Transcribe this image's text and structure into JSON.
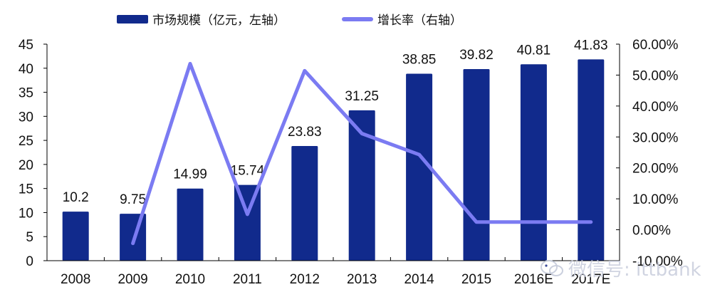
{
  "legend": {
    "bar_label": "市场规模（亿元，左轴）",
    "line_label": "增长率（右轴）"
  },
  "watermark": {
    "text": "微信号: ittbank",
    "icon": "wechat-icon"
  },
  "colors": {
    "bar": "#112a8c",
    "line": "#7b7bf2",
    "axis": "#000000"
  },
  "chart_data": {
    "type": "bar+line",
    "title": "",
    "categories": [
      "2008",
      "2009",
      "2010",
      "2011",
      "2012",
      "2013",
      "2014",
      "2015",
      "2016E",
      "2017E"
    ],
    "series": [
      {
        "name": "市场规模（亿元，左轴）",
        "type": "bar",
        "axis": "left",
        "values": [
          10.2,
          9.75,
          14.99,
          15.74,
          23.83,
          31.25,
          38.85,
          39.82,
          40.81,
          41.83
        ],
        "labels": [
          "10.2",
          "9.75",
          "14.99",
          "15.74",
          "23.83",
          "31.25",
          "38.85",
          "39.82",
          "40.81",
          "41.83"
        ]
      },
      {
        "name": "增长率（右轴）",
        "type": "line",
        "axis": "right",
        "values": [
          null,
          -4.4,
          53.7,
          5.0,
          51.4,
          31.1,
          24.3,
          2.5,
          2.5,
          2.5
        ]
      }
    ],
    "left_axis": {
      "min": 0,
      "max": 45,
      "ticks": [
        "0",
        "5",
        "10",
        "15",
        "20",
        "25",
        "30",
        "35",
        "40",
        "45"
      ]
    },
    "right_axis": {
      "min": -10,
      "max": 60,
      "ticks": [
        "-10.00%",
        "0.00%",
        "10.00%",
        "20.00%",
        "30.00%",
        "40.00%",
        "50.00%",
        "60.00%"
      ]
    },
    "xlabel": "",
    "ylabel": "",
    "grid": false,
    "legend_position": "top"
  }
}
